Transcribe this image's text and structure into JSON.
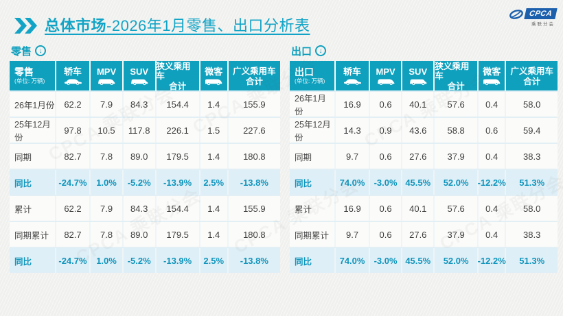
{
  "page": {
    "title": {
      "bold": "总体市场",
      "rest": "-2026年1月零售、出口分析表"
    },
    "logo": {
      "name": "CPCA",
      "sub": "乘联分会"
    },
    "watermark": "CPCA 乘联分会"
  },
  "colors": {
    "teal_header": "#0FA0BE",
    "title_cyan": "#12A4C6",
    "highlight_row_bg": "#DFEFF7",
    "highlight_text": "#1095BC",
    "logo_blue": "#1B5FAD",
    "body_text": "#3E3E3E",
    "page_bg": "#F3F3F1"
  },
  "chart_data": [
    {
      "type": "table",
      "title": "零售",
      "corner_label": "零售",
      "unit_note": "(单位: 万辆)",
      "columns": [
        {
          "label": "轿车",
          "icon": "sedan-icon"
        },
        {
          "label": "MPV",
          "icon": "mpv-icon"
        },
        {
          "label": "SUV",
          "icon": "suv-icon"
        },
        {
          "label": "狭义乘用车",
          "sublabel": "合计"
        },
        {
          "label": "微客",
          "icon": "minibus-icon"
        },
        {
          "label": "广义乘用车",
          "sublabel": "合计"
        }
      ],
      "rows": [
        {
          "label": "26年1月份",
          "highlight": false,
          "values": [
            "62.2",
            "7.9",
            "84.3",
            "154.4",
            "1.4",
            "155.9"
          ]
        },
        {
          "label": "25年12月份",
          "highlight": false,
          "values": [
            "97.8",
            "10.5",
            "117.8",
            "226.1",
            "1.5",
            "227.6"
          ]
        },
        {
          "label": "同期",
          "highlight": false,
          "values": [
            "82.7",
            "7.8",
            "89.0",
            "179.5",
            "1.4",
            "180.8"
          ]
        },
        {
          "label": "同比",
          "highlight": true,
          "values": [
            "-24.7%",
            "1.0%",
            "-5.2%",
            "-13.9%",
            "2.5%",
            "-13.8%"
          ]
        },
        {
          "label": "累计",
          "highlight": false,
          "values": [
            "62.2",
            "7.9",
            "84.3",
            "154.4",
            "1.4",
            "155.9"
          ]
        },
        {
          "label": "同期累计",
          "highlight": false,
          "values": [
            "82.7",
            "7.8",
            "89.0",
            "179.5",
            "1.4",
            "180.8"
          ]
        },
        {
          "label": "同比",
          "highlight": true,
          "values": [
            "-24.7%",
            "1.0%",
            "-5.2%",
            "-13.9%",
            "2.5%",
            "-13.8%"
          ]
        }
      ]
    },
    {
      "type": "table",
      "title": "出口",
      "corner_label": "出口",
      "unit_note": "(单位: 万辆)",
      "columns": [
        {
          "label": "轿车",
          "icon": "sedan-icon"
        },
        {
          "label": "MPV",
          "icon": "mpv-icon"
        },
        {
          "label": "SUV",
          "icon": "suv-icon"
        },
        {
          "label": "狭义乘用车",
          "sublabel": "合计"
        },
        {
          "label": "微客",
          "icon": "minibus-icon"
        },
        {
          "label": "广义乘用车",
          "sublabel": "合计"
        }
      ],
      "rows": [
        {
          "label": "26年1月份",
          "highlight": false,
          "values": [
            "16.9",
            "0.6",
            "40.1",
            "57.6",
            "0.4",
            "58.0"
          ]
        },
        {
          "label": "25年12月份",
          "highlight": false,
          "values": [
            "14.3",
            "0.9",
            "43.6",
            "58.8",
            "0.6",
            "59.4"
          ]
        },
        {
          "label": "同期",
          "highlight": false,
          "values": [
            "9.7",
            "0.6",
            "27.6",
            "37.9",
            "0.4",
            "38.3"
          ]
        },
        {
          "label": "同比",
          "highlight": true,
          "values": [
            "74.0%",
            "-3.0%",
            "45.5%",
            "52.0%",
            "-12.2%",
            "51.3%"
          ]
        },
        {
          "label": "累计",
          "highlight": false,
          "values": [
            "16.9",
            "0.6",
            "40.1",
            "57.6",
            "0.4",
            "58.0"
          ]
        },
        {
          "label": "同期累计",
          "highlight": false,
          "values": [
            "9.7",
            "0.6",
            "27.6",
            "37.9",
            "0.4",
            "38.3"
          ]
        },
        {
          "label": "同比",
          "highlight": true,
          "values": [
            "74.0%",
            "-3.0%",
            "45.5%",
            "52.0%",
            "-12.2%",
            "51.3%"
          ]
        }
      ]
    }
  ]
}
